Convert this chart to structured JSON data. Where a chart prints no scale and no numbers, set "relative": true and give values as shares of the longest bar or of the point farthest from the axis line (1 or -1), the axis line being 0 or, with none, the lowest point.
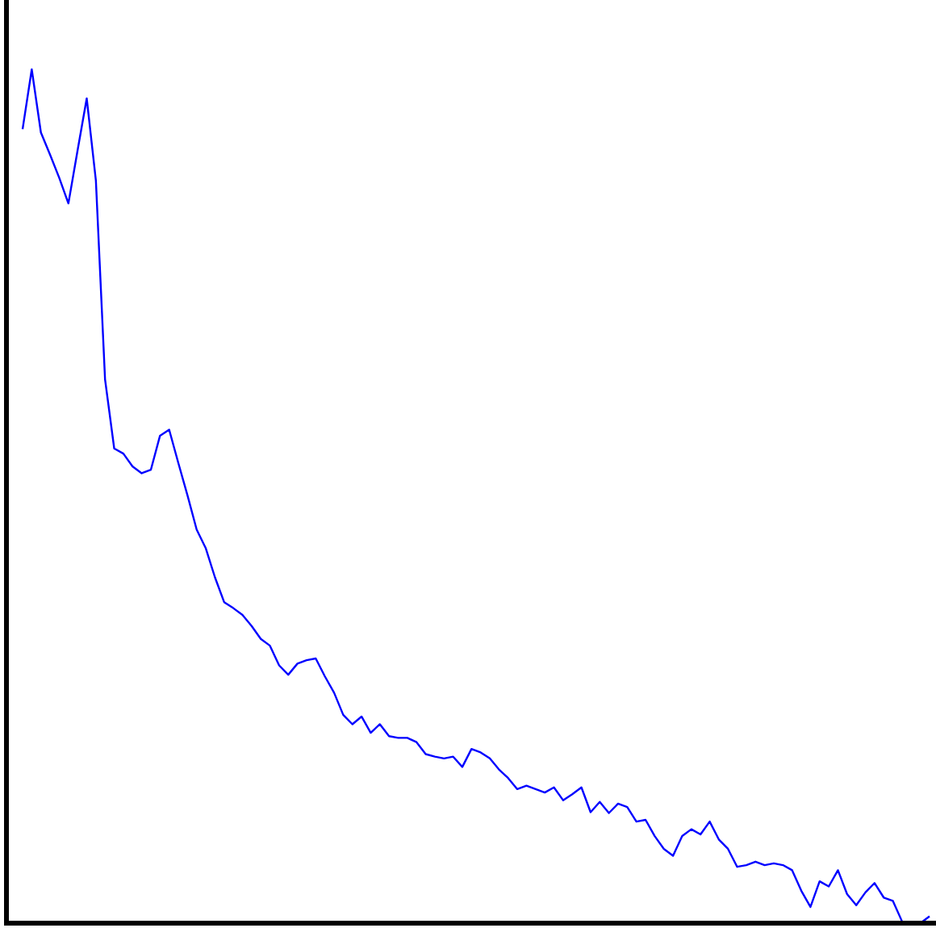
{
  "chart_data": {
    "type": "line",
    "relative": true,
    "categories": [
      null,
      null,
      null,
      null,
      null,
      null,
      null,
      null,
      null,
      null,
      null,
      null,
      null,
      null,
      null,
      null,
      null,
      null,
      null,
      null,
      null,
      null,
      null,
      null,
      null,
      null,
      null,
      null,
      null,
      null,
      null,
      null,
      null,
      null,
      null,
      null,
      null,
      null,
      null,
      null,
      null,
      null,
      null,
      null,
      null,
      null,
      null,
      null,
      null,
      null,
      null,
      null,
      null,
      null,
      null,
      null,
      null,
      null,
      null,
      null,
      null,
      null,
      null,
      null,
      null,
      null,
      null,
      null,
      null,
      null,
      null,
      null,
      null,
      null,
      null,
      null,
      null,
      null,
      null,
      null,
      null,
      null,
      null,
      null,
      null,
      null,
      null,
      null,
      null,
      null,
      null,
      null,
      null,
      null,
      null,
      null,
      null,
      null,
      null,
      null
    ],
    "series": [
      {
        "color": "#0000ff",
        "values": [
          0.93,
          1,
          0.926,
          0.9,
          0.873,
          0.843,
          0.905,
          0.966,
          0.87,
          0.637,
          0.556,
          0.55,
          0.535,
          0.527,
          0.531,
          0.571,
          0.578,
          0.539,
          0.501,
          0.461,
          0.439,
          0.405,
          0.376,
          0.369,
          0.361,
          0.348,
          0.333,
          0.325,
          0.302,
          0.291,
          0.304,
          0.308,
          0.31,
          0.289,
          0.27,
          0.244,
          0.233,
          0.242,
          0.223,
          0.233,
          0.219,
          0.217,
          0.217,
          0.212,
          0.198,
          0.195,
          0.193,
          0.195,
          0.183,
          0.204,
          0.2,
          0.193,
          0.18,
          0.17,
          0.157,
          0.161,
          0.157,
          0.153,
          0.159,
          0.144,
          0.151,
          0.159,
          0.13,
          0.142,
          0.129,
          0.14,
          0.136,
          0.119,
          0.121,
          0.102,
          0.087,
          0.079,
          0.102,
          0.11,
          0.104,
          0.119,
          0.098,
          0.087,
          0.066,
          0.068,
          0.072,
          0.068,
          0.07,
          0.068,
          0.062,
          0.038,
          0.019,
          0.049,
          0.043,
          0.062,
          0.034,
          0.021,
          0.036,
          0.047,
          0.03,
          0.026,
          0.002,
          0,
          0,
          0.008
        ]
      }
    ],
    "marker": "none",
    "line_style": "solid"
  }
}
